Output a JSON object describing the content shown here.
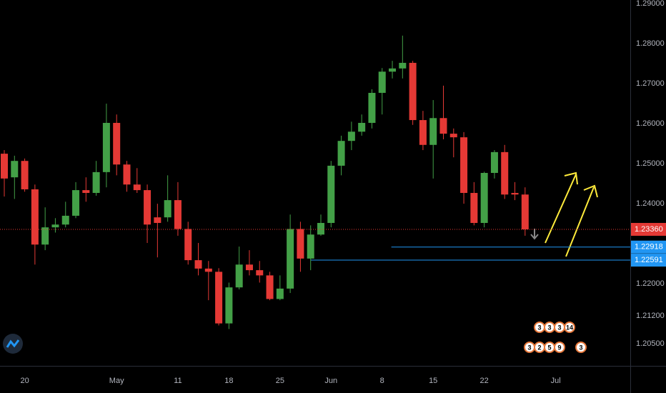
{
  "chart_data": {
    "type": "candlestick",
    "up_color": "#43a047",
    "down_color": "#e53935",
    "xlim": [
      -0.42,
      61.3
    ],
    "xticks": [
      {
        "value": 2,
        "label": "20"
      },
      {
        "value": 11,
        "label": "May"
      },
      {
        "value": 17,
        "label": "11"
      },
      {
        "value": 22,
        "label": "18"
      },
      {
        "value": 27,
        "label": "25"
      },
      {
        "value": 32,
        "label": "Jun"
      },
      {
        "value": 37,
        "label": "8"
      },
      {
        "value": 42,
        "label": "15"
      },
      {
        "value": 47,
        "label": "22"
      },
      {
        "value": 54,
        "label": "Jul"
      }
    ],
    "ylim": [
      1.1995,
      1.2909
    ],
    "yticks": [
      {
        "value": 1.29,
        "label": "1.29000"
      },
      {
        "value": 1.28,
        "label": "1.28000"
      },
      {
        "value": 1.27,
        "label": "1.27000"
      },
      {
        "value": 1.26,
        "label": "1.26000"
      },
      {
        "value": 1.25,
        "label": "1.25000"
      },
      {
        "value": 1.24,
        "label": "1.24000"
      },
      {
        "value": 1.22,
        "label": "1.22000"
      },
      {
        "value": 1.212,
        "label": "1.21200"
      },
      {
        "value": 1.205,
        "label": "1.20500"
      }
    ],
    "open": [
      1.2525,
      1.2466,
      1.2507,
      1.2436,
      1.2298,
      1.2341,
      1.2348,
      1.237,
      1.2434,
      1.2427,
      1.2479,
      1.2602,
      1.2498,
      1.2448,
      1.2434,
      1.2366,
      1.2366,
      1.2409,
      1.2337,
      1.2259,
      1.2238,
      1.223,
      1.2101,
      1.2191,
      1.2248,
      1.2234,
      1.2221,
      1.2162,
      1.2188,
      1.2337,
      1.2263,
      1.2323,
      1.2352,
      1.2495,
      1.2557,
      1.258,
      1.2602,
      1.2677,
      1.273,
      1.2738,
      1.2752,
      1.2609,
      1.2547,
      1.2614,
      1.2575,
      1.2566,
      1.2427,
      1.2352,
      1.2477,
      1.2529,
      1.2427,
      1.2423
    ],
    "high": [
      1.2534,
      1.252,
      1.2513,
      1.2448,
      1.2391,
      1.2364,
      1.2405,
      1.2454,
      1.2466,
      1.2507,
      1.265,
      1.2623,
      1.2507,
      1.2489,
      1.2448,
      1.24,
      1.2471,
      1.2454,
      1.2355,
      1.2302,
      1.2257,
      1.2239,
      1.2203,
      1.2293,
      1.2284,
      1.2257,
      1.223,
      1.2221,
      1.2373,
      1.2355,
      1.2346,
      1.2373,
      1.2507,
      1.257,
      1.2605,
      1.2623,
      1.2686,
      1.2739,
      1.2757,
      1.282,
      1.2757,
      1.2632,
      1.2659,
      1.2695,
      1.2588,
      1.2579,
      1.2454,
      1.248,
      1.2534,
      1.2547,
      1.2454,
      1.2441
    ],
    "low": [
      1.2418,
      1.2412,
      1.243,
      1.2248,
      1.2284,
      1.2328,
      1.2341,
      1.2364,
      1.2405,
      1.242,
      1.2441,
      1.2471,
      1.243,
      1.2427,
      1.2302,
      1.2266,
      1.2355,
      1.232,
      1.2248,
      1.2221,
      1.2159,
      1.2096,
      1.2087,
      1.2186,
      1.2221,
      1.2203,
      1.2159,
      1.2159,
      1.2177,
      1.223,
      1.2234,
      1.232,
      1.2341,
      1.2471,
      1.2534,
      1.257,
      1.2588,
      1.2623,
      1.2713,
      1.2713,
      1.2597,
      1.2534,
      1.2463,
      1.2561,
      1.2516,
      1.24,
      1.2346,
      1.2341,
      1.2463,
      1.2412,
      1.2409,
      1.232
    ],
    "close": [
      1.2463,
      1.2507,
      1.2436,
      1.2298,
      1.2341,
      1.2348,
      1.237,
      1.2434,
      1.2427,
      1.2479,
      1.2602,
      1.2498,
      1.2448,
      1.2434,
      1.2348,
      1.2352,
      1.2409,
      1.2337,
      1.2259,
      1.2238,
      1.223,
      1.2101,
      1.2191,
      1.2248,
      1.2234,
      1.2221,
      1.2162,
      1.2188,
      1.2337,
      1.2263,
      1.2323,
      1.2352,
      1.2495,
      1.2557,
      1.258,
      1.2602,
      1.2677,
      1.273,
      1.2738,
      1.2752,
      1.2609,
      1.2547,
      1.2614,
      1.2575,
      1.2566,
      1.2427,
      1.2352,
      1.2477,
      1.2529,
      1.2423,
      1.2423,
      1.2336
    ],
    "last_price": {
      "value": 1.2336,
      "label": "1.23360",
      "color": "#e53935"
    },
    "levels": [
      {
        "value": 1.22918,
        "label": "1.22918",
        "from": 37.9,
        "color": "#2196f3"
      },
      {
        "value": 1.22591,
        "label": "1.22591",
        "from": 30,
        "color": "#2196f3"
      }
    ],
    "events": [
      [
        "3",
        "3",
        "3",
        "14"
      ],
      [
        "3",
        "2",
        "5",
        "9",
        "3"
      ]
    ]
  }
}
